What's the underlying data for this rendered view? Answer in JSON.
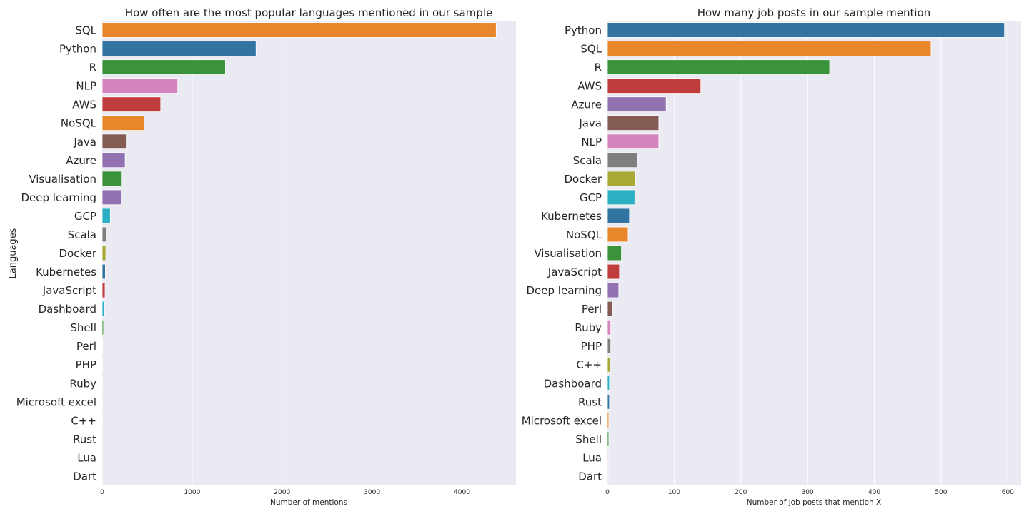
{
  "chart_data": [
    {
      "type": "bar",
      "orientation": "horizontal",
      "title": "How often are the most popular languages mentioned in our sample",
      "xlabel": "Number of mentions",
      "ylabel": "Languages",
      "xlim": [
        0,
        4600
      ],
      "xticks": [
        0,
        1000,
        2000,
        3000,
        4000
      ],
      "grid": true,
      "categories": [
        "SQL",
        "Python",
        "R",
        "NLP",
        "AWS",
        "NoSQL",
        "Java",
        "Azure",
        "Visualisation",
        "Deep learning",
        "GCP",
        "Scala",
        "Docker",
        "Kubernetes",
        "JavaScript",
        "Dashboard",
        "Shell",
        "Perl",
        "PHP",
        "Ruby",
        "Microsoft excel",
        "C++",
        "Rust",
        "Lua",
        "Dart"
      ],
      "values": [
        4380,
        1710,
        1370,
        840,
        650,
        465,
        275,
        255,
        220,
        210,
        90,
        45,
        40,
        35,
        32,
        25,
        15,
        5,
        4,
        3,
        2,
        2,
        1,
        1,
        1
      ],
      "colors": [
        "#e8862b",
        "#3274a1",
        "#3a923a",
        "#d684bd",
        "#c03d3e",
        "#e8862b",
        "#845b53",
        "#9372b2",
        "#3a923a",
        "#9372b2",
        "#2ab0c2",
        "#7f7f7f",
        "#a9aa35",
        "#3274a1",
        "#c03d3e",
        "#2ab0c2",
        "#3a923a",
        "#845b53",
        "#d684bd",
        "#9372b2",
        "#e8862b",
        "#7f7f7f",
        "#3274a1",
        "#a9aa35",
        "#845b53"
      ]
    },
    {
      "type": "bar",
      "orientation": "horizontal",
      "title": "How many job posts in our sample mention",
      "xlabel": "Number of job posts that mention X",
      "ylabel": "",
      "xlim": [
        0,
        620
      ],
      "xticks": [
        0,
        100,
        200,
        300,
        400,
        500,
        600
      ],
      "grid": true,
      "categories": [
        "Python",
        "SQL",
        "R",
        "AWS",
        "Azure",
        "Java",
        "NLP",
        "Scala",
        "Docker",
        "GCP",
        "Kubernetes",
        "NoSQL",
        "Visualisation",
        "JavaScript",
        "Deep learning",
        "Perl",
        "Ruby",
        "PHP",
        "C++",
        "Dashboard",
        "Rust",
        "Microsoft excel",
        "Shell",
        "Lua",
        "Dart"
      ],
      "values": [
        595,
        485,
        333,
        140,
        88,
        77,
        77,
        45,
        42,
        41,
        33,
        31,
        21,
        18,
        17,
        8,
        5,
        5,
        4,
        3,
        3,
        2,
        2,
        1,
        1
      ],
      "colors": [
        "#3274a1",
        "#e8862b",
        "#3a923a",
        "#c03d3e",
        "#9372b2",
        "#845b53",
        "#d684bd",
        "#7f7f7f",
        "#a9aa35",
        "#2ab0c2",
        "#3274a1",
        "#e8862b",
        "#3a923a",
        "#c03d3e",
        "#9372b2",
        "#845b53",
        "#d684bd",
        "#7f7f7f",
        "#a9aa35",
        "#2ab0c2",
        "#3274a1",
        "#e8862b",
        "#3a923a",
        "#c03d3e",
        "#9372b2"
      ]
    }
  ],
  "style": {
    "plot_background": "#eaeaf2",
    "grid_color": "#ffffff",
    "text_color": "#262626"
  }
}
